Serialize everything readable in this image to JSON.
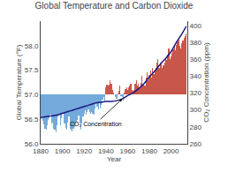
{
  "chart_data": {
    "type": "bar",
    "title": "Global Temperature and Carbon Dioxide",
    "xlabel": "Year",
    "ylabel": "Global Temperature (°F)",
    "y2label": "CO₂ Concentration (ppm)",
    "xlim": [
      1880,
      2015
    ],
    "xticks": [
      1880,
      1900,
      1920,
      1940,
      1960,
      1980,
      2000
    ],
    "ylim": [
      56.0,
      58.5
    ],
    "yticks": [
      {
        "value": 56.0,
        "label": "56.0"
      },
      56.5,
      {
        "value": 57.0,
        "label": "57.0"
      },
      57.5,
      {
        "value": 58.0,
        "label": "58.0"
      }
    ],
    "y2lim": [
      260,
      405
    ],
    "y2ticks": [
      260,
      280,
      300,
      320,
      340,
      360,
      380,
      400
    ],
    "grid": false,
    "series": [
      {
        "type": "bar",
        "baseline": 57.0,
        "x": [
          1880,
          1881,
          1882,
          1883,
          1884,
          1885,
          1886,
          1887,
          1888,
          1889,
          1890,
          1891,
          1892,
          1893,
          1894,
          1895,
          1896,
          1897,
          1898,
          1899,
          1900,
          1901,
          1902,
          1903,
          1904,
          1905,
          1906,
          1907,
          1908,
          1909,
          1910,
          1911,
          1912,
          1913,
          1914,
          1915,
          1916,
          1917,
          1918,
          1919,
          1920,
          1921,
          1922,
          1923,
          1924,
          1925,
          1926,
          1927,
          1928,
          1929,
          1930,
          1931,
          1932,
          1933,
          1934,
          1935,
          1936,
          1937,
          1938,
          1939,
          1940,
          1941,
          1942,
          1943,
          1944,
          1945,
          1946,
          1947,
          1948,
          1949,
          1950,
          1951,
          1952,
          1953,
          1954,
          1955,
          1956,
          1957,
          1958,
          1959,
          1960,
          1961,
          1962,
          1963,
          1964,
          1965,
          1966,
          1967,
          1968,
          1969,
          1970,
          1971,
          1972,
          1973,
          1974,
          1975,
          1976,
          1977,
          1978,
          1979,
          1980,
          1981,
          1982,
          1983,
          1984,
          1985,
          1986,
          1987,
          1988,
          1989,
          1990,
          1991,
          1992,
          1993,
          1994,
          1995,
          1996,
          1997,
          1998,
          1999,
          2000,
          2001,
          2002,
          2003,
          2004,
          2005,
          2006,
          2007,
          2008,
          2009,
          2010,
          2011,
          2012,
          2013,
          2014
        ],
        "values": [
          56.5,
          56.55,
          56.46,
          56.4,
          56.3,
          56.28,
          56.38,
          56.48,
          56.52,
          56.6,
          56.42,
          56.44,
          56.3,
          56.28,
          56.24,
          56.38,
          56.55,
          56.6,
          56.38,
          56.52,
          56.62,
          56.62,
          56.42,
          56.32,
          56.28,
          56.44,
          56.55,
          56.3,
          56.28,
          56.26,
          56.3,
          56.35,
          56.42,
          56.45,
          56.48,
          56.58,
          56.44,
          56.28,
          56.42,
          56.55,
          56.62,
          56.68,
          56.6,
          56.65,
          56.7,
          56.65,
          56.62,
          56.65,
          56.62,
          56.6,
          56.72,
          56.82,
          56.75,
          56.7,
          56.85,
          56.72,
          56.8,
          56.9,
          56.95,
          56.88,
          57.15,
          57.2,
          57.18,
          57.2,
          57.3,
          57.22,
          57.1,
          57.05,
          57.0,
          56.95,
          56.92,
          57.02,
          57.08,
          57.18,
          56.98,
          56.95,
          56.88,
          57.05,
          57.12,
          57.15,
          57.1,
          57.15,
          57.18,
          57.22,
          57.1,
          57.08,
          57.1,
          57.22,
          57.3,
          57.18,
          57.22,
          57.15,
          57.25,
          57.38,
          57.2,
          57.22,
          57.18,
          57.35,
          57.45,
          57.3,
          57.4,
          57.5,
          57.35,
          57.55,
          57.42,
          57.48,
          57.55,
          57.65,
          57.72,
          57.55,
          57.65,
          57.62,
          57.55,
          57.6,
          57.65,
          57.75,
          57.7,
          57.82,
          57.95,
          57.72,
          57.78,
          57.85,
          57.92,
          57.98,
          57.9,
          58.02,
          58.08,
          58.12,
          58.0,
          57.95,
          58.05,
          58.1,
          58.15,
          58.2,
          58.25
        ],
        "colors": [
          "#5b9bd5",
          "#5b9bd5",
          "#5b9bd5",
          "#5b9bd5",
          "#5b9bd5",
          "#5b9bd5",
          "#5b9bd5",
          "#5b9bd5",
          "#5b9bd5",
          "#5b9bd5",
          "#5b9bd5",
          "#5b9bd5",
          "#5b9bd5",
          "#5b9bd5",
          "#5b9bd5",
          "#5b9bd5",
          "#5b9bd5",
          "#5b9bd5",
          "#5b9bd5",
          "#5b9bd5",
          "#5b9bd5",
          "#5b9bd5",
          "#5b9bd5",
          "#5b9bd5",
          "#5b9bd5",
          "#5b9bd5",
          "#5b9bd5",
          "#5b9bd5",
          "#5b9bd5",
          "#5b9bd5",
          "#5b9bd5",
          "#5b9bd5",
          "#5b9bd5",
          "#5b9bd5",
          "#5b9bd5",
          "#5b9bd5",
          "#5b9bd5",
          "#5b9bd5",
          "#5b9bd5",
          "#5b9bd5",
          "#5b9bd5",
          "#5b9bd5",
          "#5b9bd5",
          "#5b9bd5",
          "#5b9bd5",
          "#5b9bd5",
          "#5b9bd5",
          "#5b9bd5",
          "#5b9bd5",
          "#5b9bd5",
          "#5b9bd5",
          "#5b9bd5",
          "#5b9bd5",
          "#5b9bd5",
          "#5b9bd5",
          "#5b9bd5",
          "#5b9bd5",
          "#5b9bd5",
          "#5b9bd5",
          "#5b9bd5",
          "#c0392b",
          "#c0392b",
          "#c0392b",
          "#c0392b",
          "#c0392b",
          "#c0392b",
          "#c0392b",
          "#c0392b",
          "#c0392b",
          "#5b9bd5",
          "#5b9bd5",
          "#c0392b",
          "#c0392b",
          "#c0392b",
          "#5b9bd5",
          "#5b9bd5",
          "#5b9bd5",
          "#c0392b",
          "#c0392b",
          "#c0392b",
          "#c0392b",
          "#c0392b",
          "#c0392b",
          "#c0392b",
          "#c0392b",
          "#c0392b",
          "#c0392b",
          "#c0392b",
          "#c0392b",
          "#c0392b",
          "#c0392b",
          "#c0392b",
          "#c0392b",
          "#c0392b",
          "#c0392b",
          "#c0392b",
          "#c0392b",
          "#c0392b",
          "#c0392b",
          "#c0392b",
          "#c0392b",
          "#c0392b",
          "#c0392b",
          "#c0392b",
          "#c0392b",
          "#c0392b",
          "#c0392b",
          "#c0392b",
          "#c0392b",
          "#c0392b",
          "#c0392b",
          "#c0392b",
          "#c0392b",
          "#c0392b",
          "#c0392b",
          "#c0392b",
          "#c0392b",
          "#c0392b",
          "#c0392b",
          "#c0392b",
          "#c0392b",
          "#c0392b",
          "#c0392b",
          "#c0392b",
          "#c0392b",
          "#c0392b",
          "#c0392b",
          "#c0392b",
          "#c0392b",
          "#c0392b",
          "#c0392b",
          "#c0392b",
          "#c0392b",
          "#c0392b",
          "#c0392b"
        ]
      },
      {
        "type": "line",
        "axis": "y2",
        "color": "#1a1a7e",
        "line_style": "smooth",
        "x": [
          1880,
          1885,
          1890,
          1895,
          1900,
          1905,
          1910,
          1915,
          1920,
          1925,
          1930,
          1935,
          1940,
          1945,
          1950,
          1955,
          1960,
          1965,
          1970,
          1975,
          1980,
          1985,
          1990,
          1995,
          2000,
          2005,
          2010,
          2014
        ],
        "values": [
          291,
          292,
          293,
          294,
          296,
          298,
          300,
          302,
          304,
          306,
          308,
          309,
          310,
          310,
          311,
          313,
          317,
          320,
          325,
          331,
          339,
          346,
          354,
          361,
          369,
          380,
          390,
          399
        ]
      }
    ],
    "annotations": [
      {
        "text": "CO₂ Concentration",
        "x": 1955,
        "y": 313,
        "axis": "y2"
      }
    ]
  }
}
